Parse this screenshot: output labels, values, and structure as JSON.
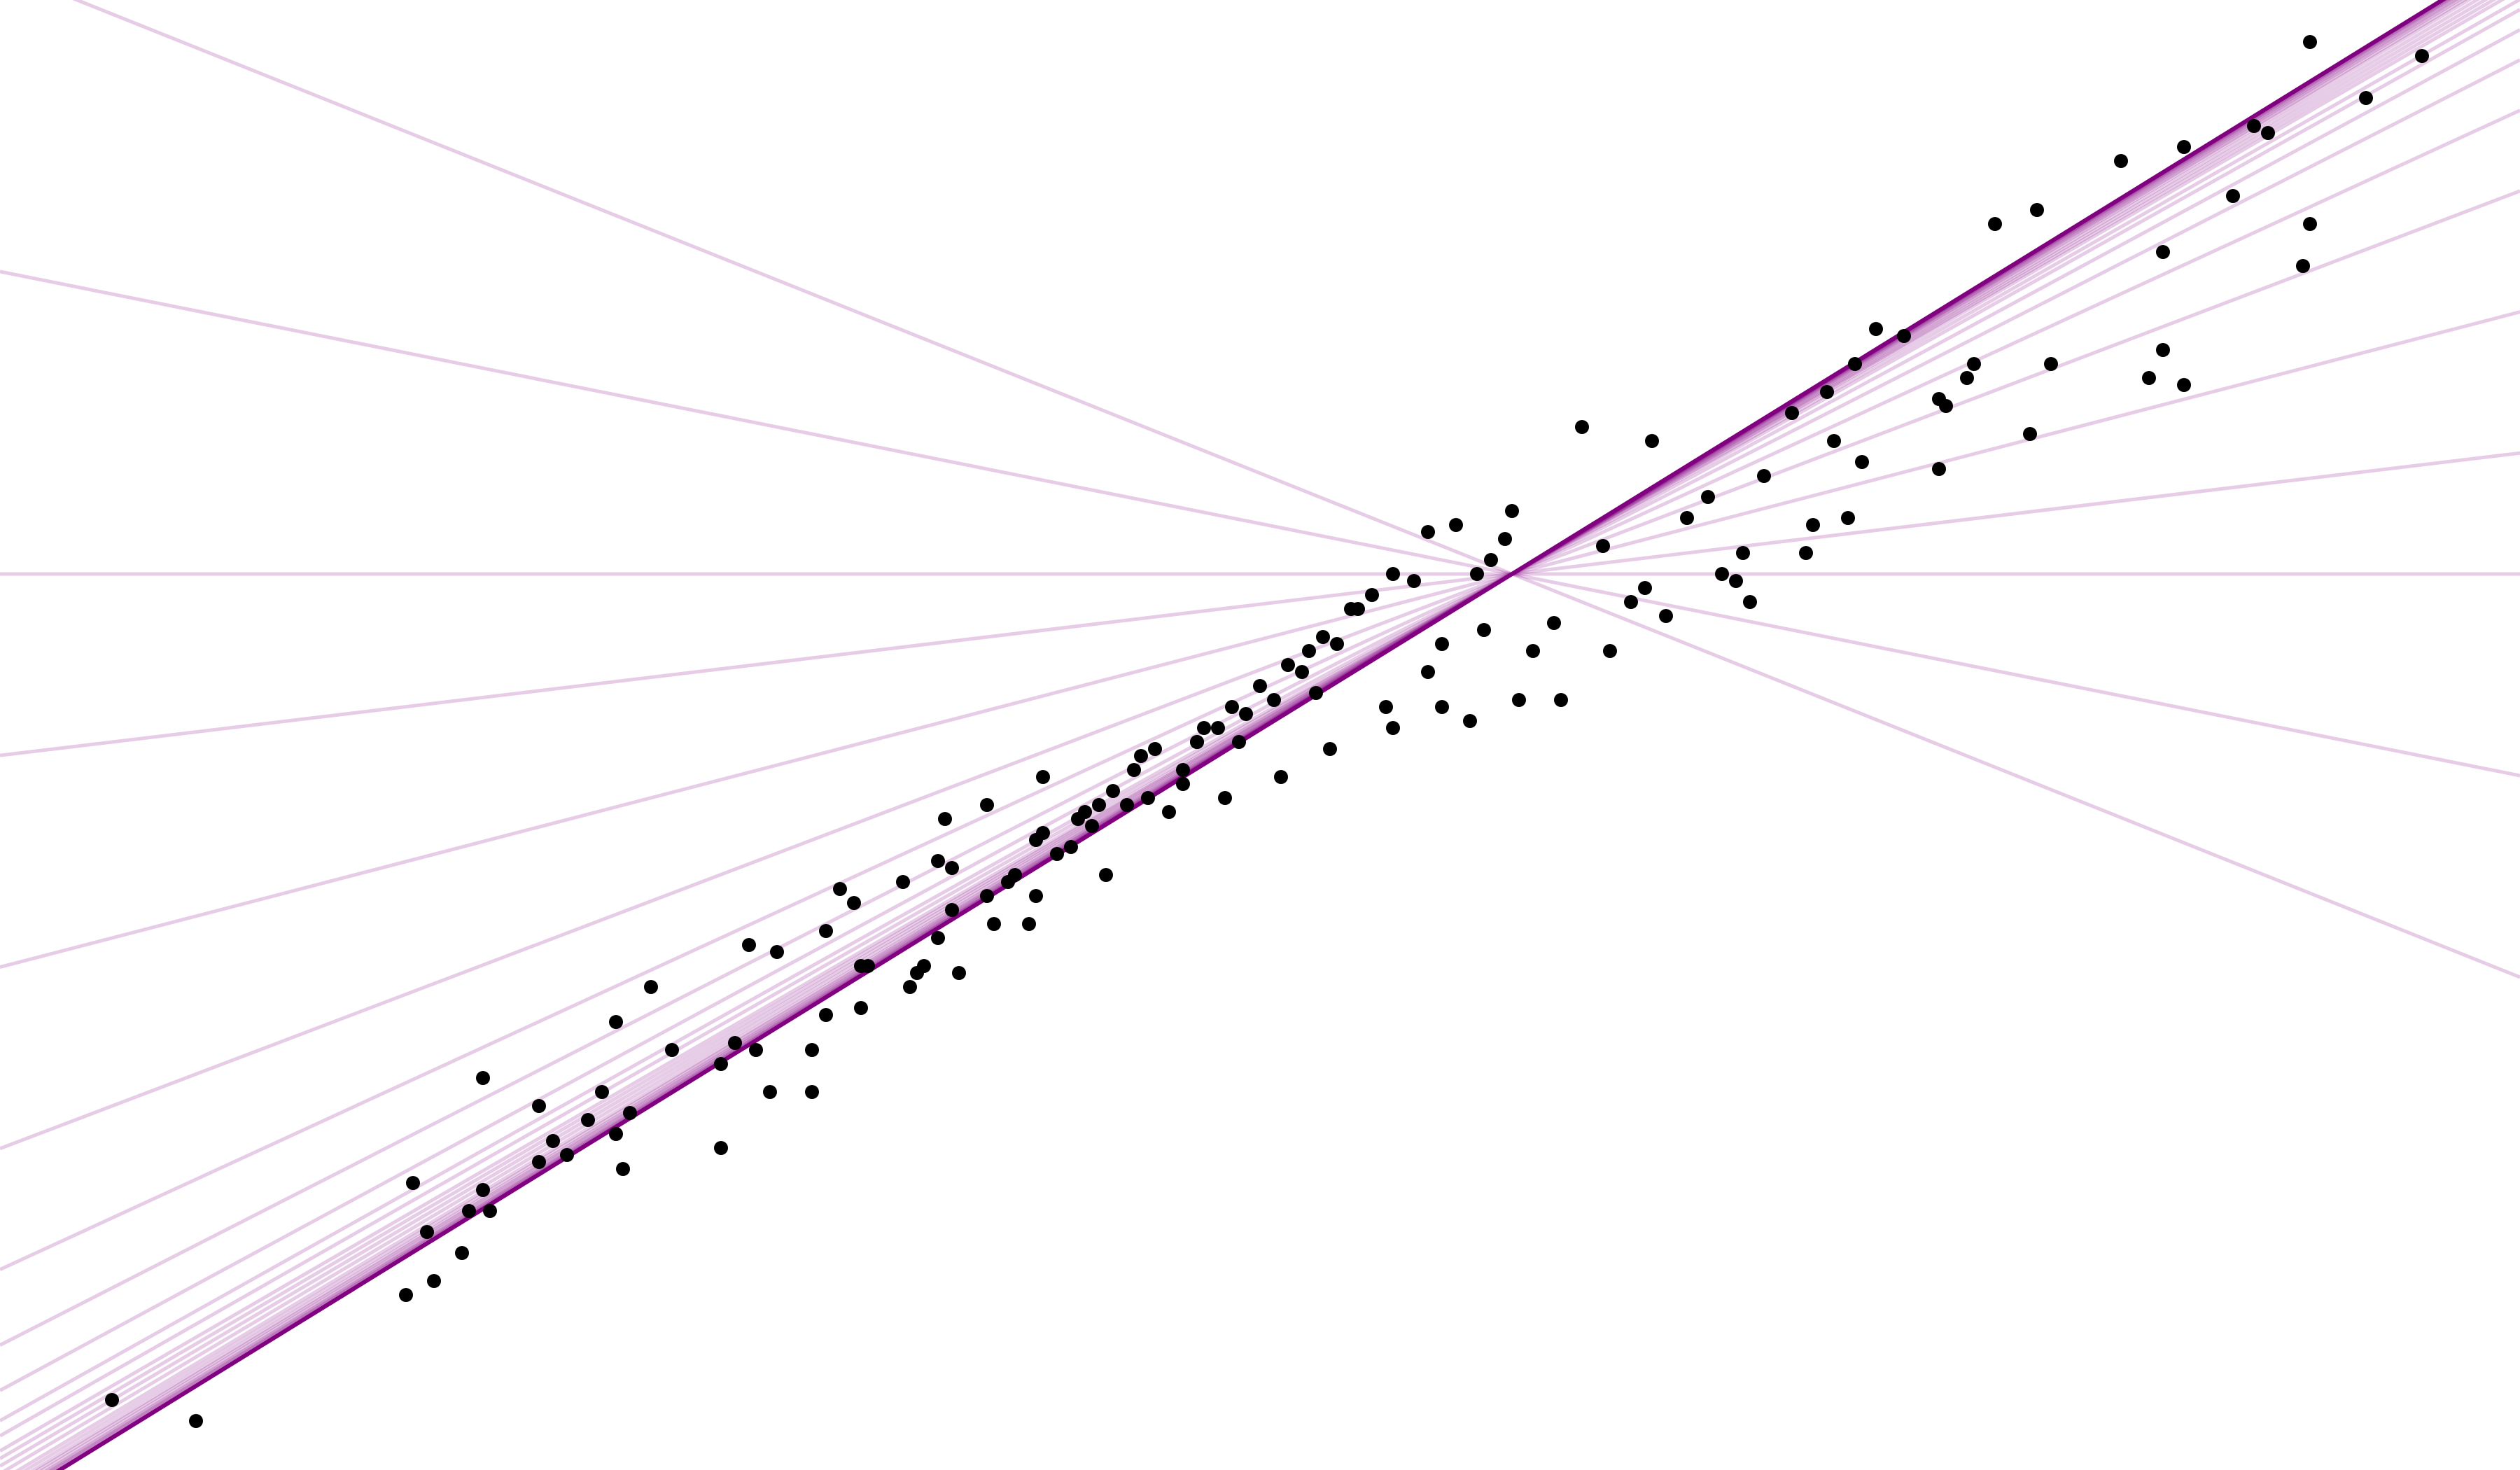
{
  "chart_data": {
    "type": "scatter",
    "title": "",
    "xlabel": "",
    "ylabel": "",
    "grid": false,
    "axes_visible": false,
    "xlim": [
      0,
      36
    ],
    "ylim": [
      0,
      21
    ],
    "colors": {
      "points": "#000000",
      "line": "#800080"
    },
    "fit_progression": {
      "pivot": [
        21.6,
        12.8
      ],
      "slopes": [
        -0.4,
        -0.2,
        0.0,
        0.12,
        0.26,
        0.38,
        0.46,
        0.51,
        0.54,
        0.56,
        0.57,
        0.58,
        0.585,
        0.59,
        0.595,
        0.6,
        0.603,
        0.606,
        0.608,
        0.61,
        0.612,
        0.613,
        0.614,
        0.615,
        0.616
      ],
      "final_slope": 0.617
    },
    "series": [
      {
        "x": [
          1.6,
          2.8,
          5.8,
          6.1,
          6.2,
          6.6,
          6.9,
          7.0,
          6.7,
          7.7,
          7.9,
          8.1,
          8.4,
          8.8,
          8.9,
          9.0,
          10.3,
          10.3,
          10.5,
          10.8,
          11.0,
          11.6,
          11.6,
          11.8,
          12.3,
          12.4,
          13.0,
          13.1,
          13.2,
          13.4,
          13.6,
          13.7,
          14.1,
          14.2,
          14.4,
          14.5,
          14.8,
          14.9,
          15.1,
          15.3,
          15.5,
          15.7,
          15.9,
          16.1,
          16.3,
          16.5,
          16.9,
          17.1,
          17.2,
          17.4,
          17.6,
          17.8,
          18.0,
          18.2,
          18.4,
          18.7,
          18.9,
          19.1,
          19.4,
          19.6,
          19.9,
          20.2,
          20.4,
          20.8,
          21.1,
          21.3,
          21.5,
          21.6,
          22.6,
          22.9,
          23.6,
          23.5,
          23.8,
          24.1,
          24.4,
          25.2,
          25.6,
          26.1,
          26.5,
          26.8,
          27.2,
          27.7,
          28.2,
          28.5,
          29.1,
          30.3,
          31.2,
          31.9,
          32.2,
          33.0,
          33.8,
          34.6,
          12.0,
          13.4,
          14.8,
          15.6,
          16.7,
          17.5,
          18.3,
          19.0,
          19.9,
          20.6,
          21.0,
          21.7,
          22.2,
          23.0,
          24.6,
          25.0,
          25.8,
          26.4,
          27.7,
          29.0,
          30.9,
          31.2,
          32.9,
          8.8,
          9.3,
          10.7,
          11.8,
          12.2,
          12.9,
          13.5,
          14.1,
          14.9,
          15.4,
          15.8,
          16.4,
          16.9,
          17.7,
          18.8,
          19.3,
          20.4,
          21.2,
          22.3,
          24.8,
          25.9,
          26.6,
          27.8,
          29.3,
          30.9,
          33.0,
          5.9,
          6.9,
          7.7,
          8.6,
          9.6,
          11.1,
          12.3,
          13.6,
          14.7,
          16.2,
          17.1,
          18.6,
          19.8,
          20.6,
          21.9,
          23.3,
          24.9,
          26.2,
          28.1,
          30.7,
          32.4
        ],
        "y": [
          1.0,
          0.7,
          2.5,
          3.4,
          2.7,
          3.1,
          4.0,
          3.7,
          3.7,
          4.4,
          4.7,
          4.5,
          5.0,
          4.8,
          4.3,
          5.1,
          5.8,
          4.6,
          6.1,
          6.0,
          5.4,
          5.4,
          6.0,
          6.5,
          6.6,
          7.2,
          6.9,
          7.1,
          7.2,
          7.6,
          8.0,
          7.1,
          8.2,
          7.8,
          8.4,
          8.5,
          8.2,
          9.1,
          8.8,
          8.9,
          9.4,
          9.5,
          9.7,
          9.5,
          10.2,
          10.3,
          10.0,
          10.4,
          10.6,
          10.6,
          10.9,
          10.8,
          11.2,
          11.0,
          11.5,
          11.7,
          11.9,
          11.8,
          12.3,
          12.5,
          12.8,
          12.7,
          13.4,
          13.5,
          12.8,
          13.0,
          13.3,
          13.7,
          14.9,
          13.2,
          14.7,
          12.6,
          12.2,
          13.6,
          13.9,
          14.2,
          15.1,
          15.4,
          15.8,
          16.3,
          16.2,
          15.3,
          15.8,
          17.8,
          18.0,
          18.7,
          18.9,
          18.2,
          19.2,
          17.8,
          19.6,
          20.2,
          8.3,
          8.7,
          9.0,
          9.2,
          9.4,
          9.6,
          9.9,
          10.3,
          10.6,
          10.9,
          10.7,
          11.0,
          12.1,
          11.7,
          12.8,
          12.4,
          13.1,
          13.6,
          14.3,
          14.8,
          16.0,
          15.5,
          17.2,
          6.4,
          6.9,
          7.5,
          7.7,
          8.1,
          8.4,
          9.3,
          9.5,
          9.9,
          9.3,
          8.5,
          9.6,
          9.8,
          10.4,
          11.1,
          12.3,
          11.4,
          12.0,
          11.0,
          12.7,
          13.5,
          14.4,
          15.2,
          15.8,
          17.4,
          20.4,
          4.1,
          5.6,
          5.2,
          5.4,
          6.0,
          7.4,
          7.2,
          8.6,
          7.8,
          10.0,
          10.4,
          11.4,
          10.9,
          11.8,
          11.7,
          12.4,
          13.1,
          14.7,
          15.6,
          15.6,
          19.1
        ]
      }
    ]
  }
}
